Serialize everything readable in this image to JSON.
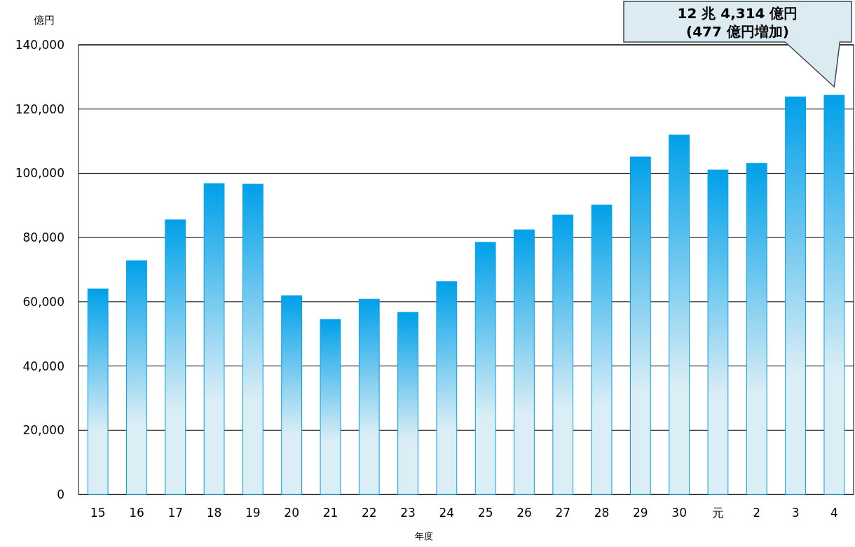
{
  "chart_data": {
    "type": "bar",
    "ylabel": "億円",
    "xlabel": "年度",
    "categories": [
      "15",
      "16",
      "17",
      "18",
      "19",
      "20",
      "21",
      "22",
      "23",
      "24",
      "25",
      "26",
      "27",
      "28",
      "29",
      "30",
      "元",
      "2",
      "3",
      "4"
    ],
    "series": [
      {
        "color": "#00a0e9",
        "values": [
          64000,
          72800,
          85500,
          96800,
          96600,
          61900,
          54500,
          60800,
          56700,
          66300,
          78500,
          82400,
          87000,
          90100,
          105100,
          111900,
          101000,
          103100,
          123800,
          124300
        ]
      }
    ],
    "ylim": [
      0,
      140000
    ],
    "yticks": [
      {
        "value": 0,
        "label": "0"
      },
      {
        "value": 20000,
        "label": "20,000"
      },
      {
        "value": 40000,
        "label": "40,000"
      },
      {
        "value": 60000,
        "label": "60,000"
      },
      {
        "value": 80000,
        "label": "80,000"
      },
      {
        "value": 100000,
        "label": "100,000"
      },
      {
        "value": 120000,
        "label": "120,000"
      },
      {
        "value": 140000,
        "label": "140,000"
      }
    ],
    "grid": "y",
    "annotations": [
      "12 兆 4,314 億円\n(477 億円増加)"
    ]
  }
}
